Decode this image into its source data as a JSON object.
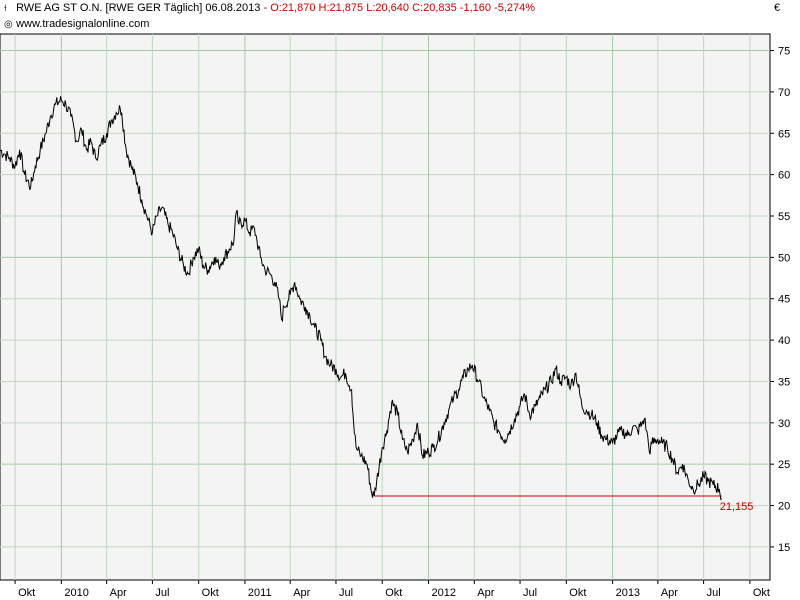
{
  "header": {
    "title": "RWE AG ST O.N. [RWE GER  Täglich] 06.08.2013",
    "ohlc": "O:21,870 H:21,875 L:20,640 C:20,835 -1,160 -5,274%",
    "source": "www.tradesignalonline.com",
    "currency": "€"
  },
  "chart_data": {
    "type": "line",
    "title": "RWE AG ST O.N. [RWE GER  Täglich] 06.08.2013",
    "xlabel": "",
    "ylabel": "",
    "ylim": [
      11,
      77
    ],
    "ytick_values": [
      15,
      20,
      25,
      30,
      35,
      40,
      45,
      50,
      55,
      60,
      65,
      70,
      75
    ],
    "ytick_labels": [
      "15",
      "20",
      "25",
      "30",
      "35",
      "40",
      "45",
      "50",
      "55",
      "60",
      "65",
      "70",
      "75"
    ],
    "xlim": [
      "2009-09-01",
      "2013-11-10"
    ],
    "xtick_dates": [
      "2009-10-01",
      "2010-01-01",
      "2010-04-01",
      "2010-07-01",
      "2010-10-01",
      "2011-01-01",
      "2011-04-01",
      "2011-07-01",
      "2011-10-01",
      "2012-01-01",
      "2012-04-01",
      "2012-07-01",
      "2012-10-01",
      "2013-01-01",
      "2013-04-01",
      "2013-07-01",
      "2013-10-01"
    ],
    "xtick_labels": [
      "Okt",
      "2010",
      "Apr",
      "Jul",
      "Okt",
      "2011",
      "Apr",
      "Jul",
      "Okt",
      "2012",
      "Apr",
      "Jul",
      "Okt",
      "2013",
      "Apr",
      "Jul",
      "Okt"
    ],
    "grid_major_y": [
      25,
      50,
      75
    ],
    "grid_major_x": [
      "2010-01-01",
      "2011-01-01",
      "2012-01-01",
      "2013-01-01"
    ],
    "series": [
      {
        "points": [
          [
            "2009-09-01",
            63.0
          ],
          [
            "2009-09-10",
            62.5
          ],
          [
            "2009-09-20",
            62.0
          ],
          [
            "2009-10-01",
            61.0
          ],
          [
            "2009-10-10",
            63.0
          ],
          [
            "2009-10-20",
            60.0
          ],
          [
            "2009-11-01",
            58.5
          ],
          [
            "2009-11-10",
            61.0
          ],
          [
            "2009-11-20",
            63.0
          ],
          [
            "2009-12-01",
            65.0
          ],
          [
            "2009-12-10",
            67.0
          ],
          [
            "2009-12-20",
            68.5
          ],
          [
            "2010-01-01",
            69.0
          ],
          [
            "2010-01-10",
            68.5
          ],
          [
            "2010-01-20",
            67.0
          ],
          [
            "2010-02-01",
            64.0
          ],
          [
            "2010-02-10",
            65.5
          ],
          [
            "2010-02-20",
            63.0
          ],
          [
            "2010-03-01",
            64.0
          ],
          [
            "2010-03-10",
            62.0
          ],
          [
            "2010-03-20",
            63.5
          ],
          [
            "2010-04-01",
            65.0
          ],
          [
            "2010-04-10",
            66.5
          ],
          [
            "2010-04-20",
            67.5
          ],
          [
            "2010-04-28",
            68.0
          ],
          [
            "2010-05-01",
            67.5
          ],
          [
            "2010-05-10",
            63.0
          ],
          [
            "2010-05-20",
            61.0
          ],
          [
            "2010-06-01",
            59.0
          ],
          [
            "2010-06-10",
            57.0
          ],
          [
            "2010-06-20",
            55.0
          ],
          [
            "2010-07-01",
            53.0
          ],
          [
            "2010-07-10",
            55.0
          ],
          [
            "2010-07-20",
            56.0
          ],
          [
            "2010-08-01",
            54.0
          ],
          [
            "2010-08-10",
            53.0
          ],
          [
            "2010-08-20",
            51.0
          ],
          [
            "2010-09-01",
            49.0
          ],
          [
            "2010-09-10",
            48.0
          ],
          [
            "2010-09-20",
            50.0
          ],
          [
            "2010-10-01",
            51.0
          ],
          [
            "2010-10-10",
            49.0
          ],
          [
            "2010-10-20",
            48.5
          ],
          [
            "2010-11-01",
            50.0
          ],
          [
            "2010-11-10",
            49.0
          ],
          [
            "2010-11-20",
            50.0
          ],
          [
            "2010-12-01",
            51.0
          ],
          [
            "2010-12-10",
            52.0
          ],
          [
            "2010-12-15",
            55.5
          ],
          [
            "2010-12-20",
            54.0
          ],
          [
            "2011-01-01",
            54.5
          ],
          [
            "2011-01-10",
            53.0
          ],
          [
            "2011-01-20",
            53.5
          ],
          [
            "2011-01-25",
            52.0
          ],
          [
            "2011-02-01",
            50.0
          ],
          [
            "2011-02-10",
            48.5
          ],
          [
            "2011-02-20",
            48.0
          ],
          [
            "2011-03-01",
            47.0
          ],
          [
            "2011-03-10",
            45.0
          ],
          [
            "2011-03-15",
            42.5
          ],
          [
            "2011-03-20",
            44.0
          ],
          [
            "2011-04-01",
            45.5
          ],
          [
            "2011-04-10",
            47.0
          ],
          [
            "2011-04-20",
            45.0
          ],
          [
            "2011-05-01",
            44.0
          ],
          [
            "2011-05-10",
            43.0
          ],
          [
            "2011-05-20",
            41.5
          ],
          [
            "2011-06-01",
            40.0
          ],
          [
            "2011-06-10",
            38.0
          ],
          [
            "2011-06-20",
            37.0
          ],
          [
            "2011-07-01",
            36.5
          ],
          [
            "2011-07-10",
            35.5
          ],
          [
            "2011-07-20",
            36.0
          ],
          [
            "2011-08-01",
            34.0
          ],
          [
            "2011-08-05",
            30.0
          ],
          [
            "2011-08-10",
            27.0
          ],
          [
            "2011-08-20",
            26.0
          ],
          [
            "2011-09-01",
            25.0
          ],
          [
            "2011-09-10",
            21.5
          ],
          [
            "2011-09-15",
            21.155
          ],
          [
            "2011-09-20",
            23.0
          ],
          [
            "2011-10-01",
            27.0
          ],
          [
            "2011-10-10",
            29.0
          ],
          [
            "2011-10-20",
            32.5
          ],
          [
            "2011-11-01",
            31.0
          ],
          [
            "2011-11-10",
            28.0
          ],
          [
            "2011-11-20",
            26.5
          ],
          [
            "2011-12-01",
            28.0
          ],
          [
            "2011-12-10",
            30.0
          ],
          [
            "2011-12-20",
            26.0
          ],
          [
            "2012-01-01",
            26.5
          ],
          [
            "2012-01-10",
            27.0
          ],
          [
            "2012-01-20",
            28.0
          ],
          [
            "2012-02-01",
            30.0
          ],
          [
            "2012-02-10",
            31.5
          ],
          [
            "2012-02-20",
            33.0
          ],
          [
            "2012-03-01",
            34.0
          ],
          [
            "2012-03-10",
            35.5
          ],
          [
            "2012-03-20",
            36.5
          ],
          [
            "2012-03-28",
            37.0
          ],
          [
            "2012-04-10",
            35.0
          ],
          [
            "2012-04-20",
            33.0
          ],
          [
            "2012-05-01",
            31.5
          ],
          [
            "2012-05-10",
            30.0
          ],
          [
            "2012-05-20",
            29.0
          ],
          [
            "2012-06-01",
            28.0
          ],
          [
            "2012-06-10",
            29.0
          ],
          [
            "2012-06-20",
            30.5
          ],
          [
            "2012-07-01",
            32.0
          ],
          [
            "2012-07-10",
            33.5
          ],
          [
            "2012-07-20",
            31.0
          ],
          [
            "2012-08-01",
            32.0
          ],
          [
            "2012-08-10",
            33.0
          ],
          [
            "2012-08-20",
            34.0
          ],
          [
            "2012-09-01",
            35.0
          ],
          [
            "2012-09-10",
            36.5
          ],
          [
            "2012-09-20",
            35.0
          ],
          [
            "2012-10-01",
            35.5
          ],
          [
            "2012-10-10",
            34.5
          ],
          [
            "2012-10-20",
            36.0
          ],
          [
            "2012-11-01",
            32.0
          ],
          [
            "2012-11-10",
            31.5
          ],
          [
            "2012-11-20",
            31.0
          ],
          [
            "2012-12-01",
            30.0
          ],
          [
            "2012-12-10",
            28.5
          ],
          [
            "2012-12-20",
            28.0
          ],
          [
            "2013-01-01",
            27.5
          ],
          [
            "2013-01-10",
            28.5
          ],
          [
            "2013-01-20",
            29.0
          ],
          [
            "2013-02-01",
            28.5
          ],
          [
            "2013-02-10",
            29.5
          ],
          [
            "2013-02-20",
            29.0
          ],
          [
            "2013-03-01",
            30.0
          ],
          [
            "2013-03-05",
            30.5
          ],
          [
            "2013-03-10",
            29.0
          ],
          [
            "2013-03-15",
            26.5
          ],
          [
            "2013-03-20",
            27.5
          ],
          [
            "2013-04-01",
            28.0
          ],
          [
            "2013-04-10",
            27.5
          ],
          [
            "2013-04-20",
            27.0
          ],
          [
            "2013-05-01",
            25.5
          ],
          [
            "2013-05-10",
            24.0
          ],
          [
            "2013-05-20",
            25.0
          ],
          [
            "2013-06-01",
            23.0
          ],
          [
            "2013-06-10",
            22.0
          ],
          [
            "2013-06-20",
            22.5
          ],
          [
            "2013-07-01",
            23.5
          ],
          [
            "2013-07-10",
            23.0
          ],
          [
            "2013-07-20",
            22.5
          ],
          [
            "2013-08-01",
            22.0
          ],
          [
            "2013-08-06",
            20.835
          ]
        ]
      }
    ],
    "support_line": {
      "y": 21.155,
      "from": "2011-09-15",
      "to": "2013-08-06",
      "color": "#cc0000"
    },
    "annotations": [
      {
        "text": "21,155",
        "x": "2013-08-06",
        "y": 21.155,
        "color": "#cc0000"
      }
    ],
    "colors": {
      "line": "#000000",
      "background": "#f4f4f4",
      "grid": "#bfd7bf",
      "major_grid": "#a8c8a8",
      "accent": "#cc0000"
    }
  }
}
